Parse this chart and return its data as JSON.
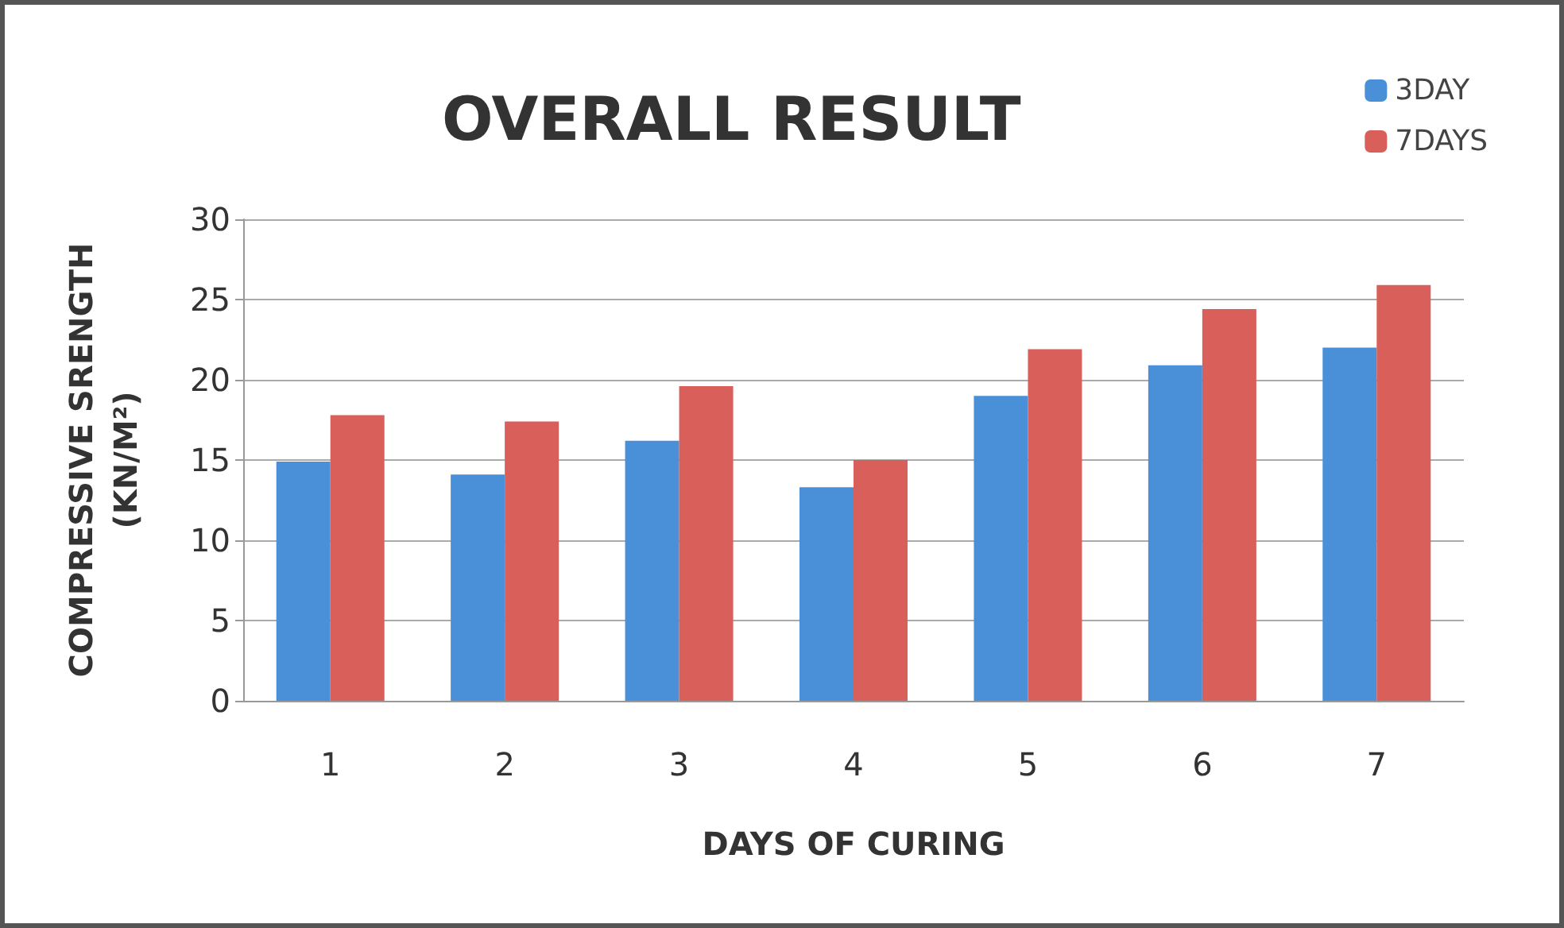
{
  "chart_data": {
    "type": "bar",
    "title": "OVERALL RESULT",
    "xlabel": "DAYS OF CURING",
    "ylabel": "COMPRESSIVE SRENGTH\n(KN/M²)",
    "categories": [
      "1",
      "2",
      "3",
      "4",
      "5",
      "6",
      "7"
    ],
    "series": [
      {
        "name": "3DAY",
        "color": "#4a90d9",
        "values": [
          14.9,
          14.1,
          16.2,
          13.3,
          19.0,
          20.9,
          22.0
        ]
      },
      {
        "name": "7DAYS",
        "color": "#d9605a",
        "values": [
          17.8,
          17.4,
          19.6,
          15.0,
          21.9,
          24.4,
          25.9
        ]
      }
    ],
    "ylim": [
      0,
      30
    ],
    "yticks": [
      0,
      5,
      10,
      15,
      20,
      25,
      30
    ],
    "grid": "y",
    "legend": "top right"
  }
}
